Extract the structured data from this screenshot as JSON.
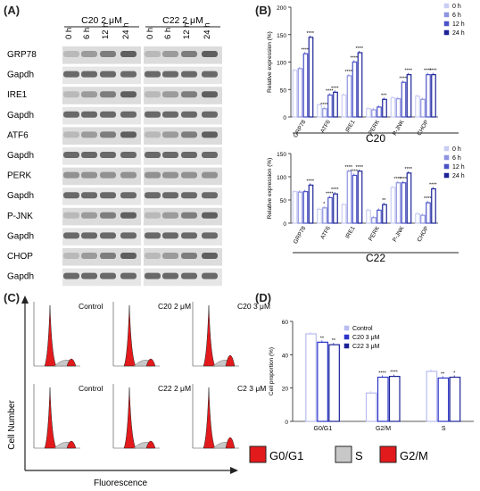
{
  "panelA": {
    "letter": "(A)",
    "groups": [
      {
        "label": "C20 2 μM"
      },
      {
        "label": "C22 2 μM"
      }
    ],
    "timepoints": [
      "0 h",
      "6 h",
      "12 h",
      "24 h"
    ],
    "rows": [
      "GRP78",
      "Gapdh",
      "IRE1",
      "Gapdh",
      "ATF6",
      "Gapdh",
      "PERK",
      "Gapdh",
      "P-JNK",
      "Gapdh",
      "CHOP",
      "Gapdh"
    ]
  },
  "panelB": {
    "letter": "(B)",
    "charts": [
      {
        "type": "bar",
        "title": "C20",
        "ylabel": "Relative expression (%)",
        "ylim": [
          0,
          200
        ],
        "yticks": [
          0,
          50,
          100,
          150,
          200
        ],
        "categories": [
          "GRP78",
          "ATF6",
          "IRE1",
          "PERK",
          "P-JNK",
          "CHOP"
        ],
        "series": [
          {
            "name": "0 h",
            "values": [
              85,
              22,
              40,
              15,
              35,
              38
            ]
          },
          {
            "name": "6 h",
            "values": [
              88,
              15,
              75,
              13,
              33,
              32
            ]
          },
          {
            "name": "12 h",
            "values": [
              115,
              40,
              100,
              18,
              63,
              77
            ]
          },
          {
            "name": "24 h",
            "values": [
              145,
              45,
              117,
              32,
              77,
              77
            ]
          }
        ],
        "stars": [
          [
            "",
            "",
            "****",
            "****"
          ],
          [
            "",
            "****",
            "****",
            "****"
          ],
          [
            "",
            "****",
            "****",
            "****"
          ],
          [
            "",
            "",
            "",
            "***"
          ],
          [
            "",
            "",
            "****",
            "****"
          ],
          [
            "",
            "",
            "****",
            "****"
          ]
        ]
      },
      {
        "type": "bar",
        "title": "C22",
        "ylabel": "Relative expression (%)",
        "ylim": [
          0,
          150
        ],
        "yticks": [
          0,
          50,
          100,
          150
        ],
        "categories": [
          "GRP78",
          "ATF6",
          "IRE1",
          "PERK",
          "P-JNK",
          "CHOP"
        ],
        "series": [
          {
            "name": "0 h",
            "values": [
              68,
              30,
              40,
              28,
              77,
              20
            ]
          },
          {
            "name": "6 h",
            "values": [
              67,
              33,
              112,
              12,
              87,
              17
            ]
          },
          {
            "name": "12 h",
            "values": [
              68,
              55,
              103,
              28,
              87,
              44
            ]
          },
          {
            "name": "24 h",
            "values": [
              82,
              63,
              112,
              40,
              108,
              74
            ]
          }
        ],
        "stars": [
          [
            "",
            "",
            "",
            "****"
          ],
          [
            "",
            "*",
            "****",
            "****"
          ],
          [
            "",
            "****",
            "****",
            "****"
          ],
          [
            "",
            "",
            "",
            "**"
          ],
          [
            "",
            "****",
            "****",
            "****"
          ],
          [
            "",
            "",
            "****",
            "****"
          ]
        ]
      }
    ]
  },
  "panelC": {
    "letter": "(C)",
    "ylabel": "Cell Number",
    "xlabel": "Fluorescence",
    "histograms": [
      [
        "Control",
        "C20 2 μM",
        "C20 3 μM"
      ],
      [
        "Control",
        "C22 2 μM",
        "C2 3 μM"
      ]
    ],
    "legend": [
      {
        "label": "G0/G1",
        "color": "#e31a1c"
      },
      {
        "label": "S",
        "color": "#c8c8c8"
      },
      {
        "label": "G2/M",
        "color": "#e31a1c"
      }
    ]
  },
  "panelD": {
    "letter": "(D)",
    "chart_data": {
      "type": "bar",
      "ylabel": "Cell proportion (%)",
      "ylim": [
        0,
        60
      ],
      "yticks": [
        0,
        20,
        40,
        60
      ],
      "categories": [
        "G0/G1",
        "G2/M",
        "S"
      ],
      "series": [
        {
          "name": "Control",
          "values": [
            52.5,
            17,
            30
          ]
        },
        {
          "name": "C20 3 μM",
          "values": [
            47.5,
            26.5,
            26
          ]
        },
        {
          "name": "C22 3 μM",
          "values": [
            46,
            27,
            26.5
          ]
        }
      ],
      "stars": [
        [
          "",
          "**",
          "**"
        ],
        [
          "",
          "****",
          "****"
        ],
        [
          "",
          "**",
          "*"
        ]
      ]
    }
  }
}
